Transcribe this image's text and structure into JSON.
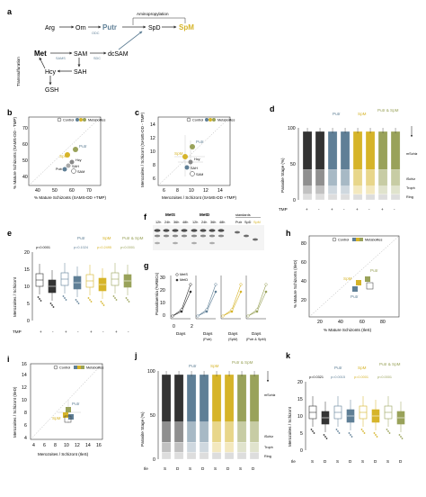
{
  "panels": {
    "a": {
      "letter": "a",
      "nodes": {
        "arg": "Arg",
        "orn": "Orn",
        "putr": "Putr",
        "spd": "SpD",
        "spm": "SpM",
        "met": "Met",
        "sam": "SAM",
        "dcsam": "dcSAM",
        "hcy": "Hcy",
        "sah": "SAH",
        "gsh": "GSH"
      },
      "enzymes": {
        "odc": "ODC",
        "sams": "SAMS",
        "sdc": "SDC"
      },
      "labels": {
        "aminopropylation": "Aminopropylation",
        "transsulfuration": "Transsulfuration"
      }
    },
    "b": {
      "letter": "b",
      "ylabel": "% Mature Schizonts (SAMS-DD - TMP)",
      "xlabel": "% Mature Schizonts (SAMS-DD +TMP)",
      "legend_control": "Control",
      "legend_metabolites": "Metabolites",
      "pt_putr": "Putr",
      "pt_spm": "SpM",
      "pt_hcy": "Hcy",
      "pt_sah": "SAH",
      "pt_pub": "Pub",
      "pt_sam": "SAM",
      "ticks_x": [
        "40",
        "50",
        "60",
        "70"
      ],
      "ticks_y": [
        "40",
        "50",
        "60",
        "70"
      ]
    },
    "c": {
      "letter": "c",
      "ylabel": "Merozoites / Schizont (SAMS-DD - TMP)",
      "xlabel": "Merozoites / Schizont (SAMS-DD +TMP)",
      "legend_control": "Control",
      "legend_metabolites": "Metabolites",
      "pt_putr": "Putr",
      "pt_spm": "SpM",
      "pt_hcy": "Hcy",
      "pt_sah": "SAH",
      "pt_sam": "SAM",
      "ticks_x": [
        "6",
        "8",
        "10",
        "12",
        "14"
      ],
      "ticks_y": [
        "6",
        "8",
        "10",
        "12",
        "14"
      ]
    },
    "d": {
      "letter": "d",
      "ylabel": "Parasite Stage (%)",
      "grp_putr": "Putr",
      "grp_spm": "SpM",
      "grp_putrspm": "Putr & SpM",
      "right_labels": [
        "mSchiz",
        "iSchiz",
        "Troph",
        "Ring"
      ],
      "tmp_label": "TMP",
      "tmp_signs": [
        "+",
        "-",
        "+",
        "-",
        "+",
        "-",
        "+",
        "-"
      ],
      "ticks_y": [
        "0",
        "50",
        "100"
      ]
    },
    "e": {
      "letter": "e",
      "ylabel": "Merozoites / Schizont",
      "grp_putr": "Putr",
      "grp_spm": "SpM",
      "grp_putrspm": "Putr & SpM",
      "pvals": [
        "p<0.0001",
        "p=0.1024",
        "p=0.2495",
        "p<0.0001"
      ],
      "tmp_label": "TMP",
      "tmp_signs": [
        "+",
        "-",
        "+",
        "-",
        "+",
        "-",
        "+",
        "-"
      ],
      "ticks_y": [
        "0",
        "5",
        "10",
        "15",
        "20"
      ]
    },
    "f": {
      "letter": "f",
      "grp1": "MetS",
      "grp2": "MetD",
      "grp3": "standards",
      "lane_labels": [
        "12h",
        "24h",
        "36h",
        "48h",
        "12h",
        "24h",
        "36h",
        "48h"
      ],
      "std_labels": [
        "Putr",
        "SpD",
        "SpM"
      ]
    },
    "g": {
      "letter": "g",
      "ylabel": "Parasitaemia (%RBCs)",
      "xlabel": "Days",
      "sub_putr": "(Putr)",
      "sub_spm": "(SpM)",
      "sub_putrspm": "(Putr & SpM)",
      "legend_mets": "MetS",
      "legend_metd": "MetD",
      "ticks_x": [
        "0",
        "2"
      ],
      "ticks_y": [
        "0",
        "10",
        "20",
        "30"
      ]
    },
    "h": {
      "letter": "h",
      "ylabel": "% Mature Schizonts (IleD)",
      "xlabel": "% Mature Schizonts (IleS)",
      "legend_control": "Control",
      "legend_metabolites": "Metabolites",
      "pt_putr": "Putr",
      "pt_spm": "SpM",
      "pt_pub": "Putr",
      "ticks_x": [
        "20",
        "40",
        "60",
        "80"
      ],
      "ticks_y": [
        "20",
        "40",
        "60",
        "80"
      ]
    },
    "i": {
      "letter": "i",
      "ylabel": "Merozoites / Schizont (IleD)",
      "xlabel": "Merozoites / Schizont (IleS)",
      "legend_control": "Control",
      "legend_metabolites": "Metabolites",
      "pt_putr": "Putr",
      "pt_spm": "SpM",
      "ticks_x": [
        "4",
        "6",
        "8",
        "10",
        "12",
        "14",
        "16"
      ],
      "ticks_y": [
        "4",
        "6",
        "8",
        "10",
        "12",
        "14",
        "16"
      ]
    },
    "j": {
      "letter": "j",
      "ylabel": "Parasite Stage (%)",
      "grp_putr": "Putr",
      "grp_spm": "SpM",
      "grp_putrspm": "Putr & SpM",
      "right_labels": [
        "mSchiz",
        "iSchiz",
        "Troph",
        "Ring"
      ],
      "ile_label": "Ile",
      "ile_signs": [
        "S",
        "D",
        "S",
        "D",
        "S",
        "D",
        "S",
        "D"
      ],
      "ticks_y": [
        "0",
        "50",
        "100"
      ]
    },
    "k": {
      "letter": "k",
      "ylabel": "Merozoites / Schizont",
      "grp_putr": "Putr",
      "grp_spm": "SpM",
      "grp_putrspm": "Putr & SpM",
      "pvals": [
        "p=0.0321",
        "p=0.0015",
        "p=0.0001",
        "p<0.0001"
      ],
      "ile_label": "Ile",
      "ile_signs": [
        "S",
        "D",
        "S",
        "D",
        "S",
        "D",
        "S",
        "D"
      ],
      "ticks_y": [
        "0",
        "5",
        "10",
        "15",
        "20"
      ]
    }
  },
  "colors": {
    "putr": "#5f7f96",
    "spm": "#d6b429",
    "putrspm": "#99a25a",
    "control": "#777777",
    "dark": "#333333"
  }
}
